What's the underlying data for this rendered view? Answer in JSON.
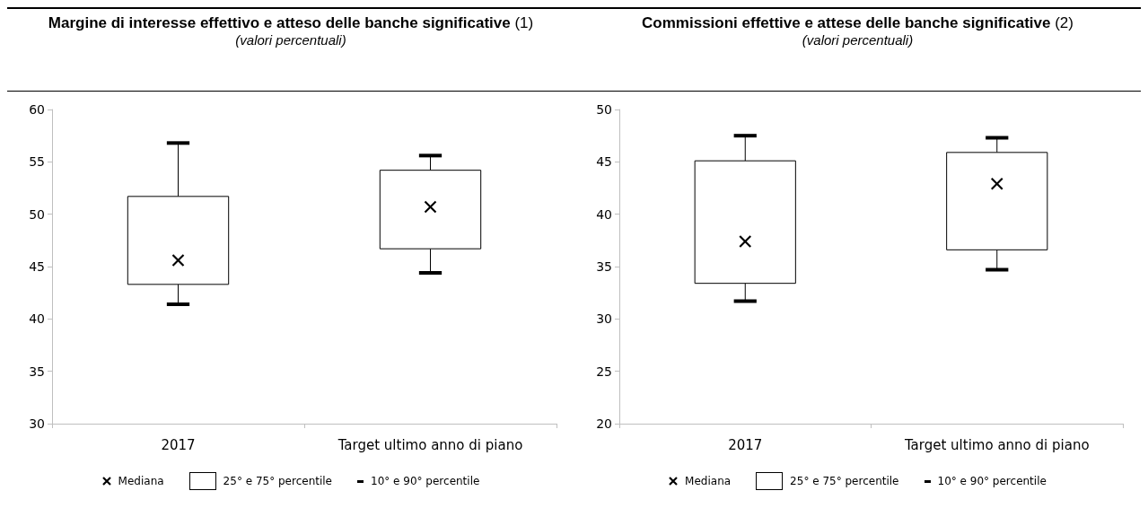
{
  "chart_data": [
    {
      "type": "box",
      "title": "Margine di interesse effettivo e atteso delle banche significative (1)",
      "subtitle": "(valori percentuali)",
      "categories": [
        "2017",
        "Target ultimo anno di piano"
      ],
      "series": [
        {
          "name": "25° e 75° percentile",
          "color": "#000000",
          "boxes": [
            {
              "low": 41.4,
              "q1": 43.3,
              "median": 45.6,
              "q3": 51.7,
              "high": 56.8
            },
            {
              "low": 44.4,
              "q1": 46.7,
              "median": 50.7,
              "q3": 54.2,
              "high": 55.6
            }
          ]
        }
      ],
      "annotations": [
        "Mediana",
        "10° e 90° percentile"
      ],
      "ylim": [
        30,
        60
      ],
      "yticks": [
        30,
        35,
        40,
        45,
        50,
        55,
        60
      ],
      "legend": "bottom"
    },
    {
      "type": "box",
      "title": "Commissioni effettive e attese delle banche significative (2)",
      "subtitle": "(valori percentuali)",
      "categories": [
        "2017",
        "Target ultimo anno di piano"
      ],
      "series": [
        {
          "name": "25° e 75° percentile",
          "color": "#000000",
          "boxes": [
            {
              "low": 31.7,
              "q1": 33.4,
              "median": 37.4,
              "q3": 45.1,
              "high": 47.5
            },
            {
              "low": 34.7,
              "q1": 36.6,
              "median": 42.9,
              "q3": 45.9,
              "high": 47.3
            }
          ]
        }
      ],
      "annotations": [
        "Mediana",
        "10° e 90° percentile"
      ],
      "ylim": [
        20,
        50
      ],
      "yticks": [
        20,
        25,
        30,
        35,
        40,
        45,
        50
      ],
      "legend": "bottom"
    }
  ]
}
